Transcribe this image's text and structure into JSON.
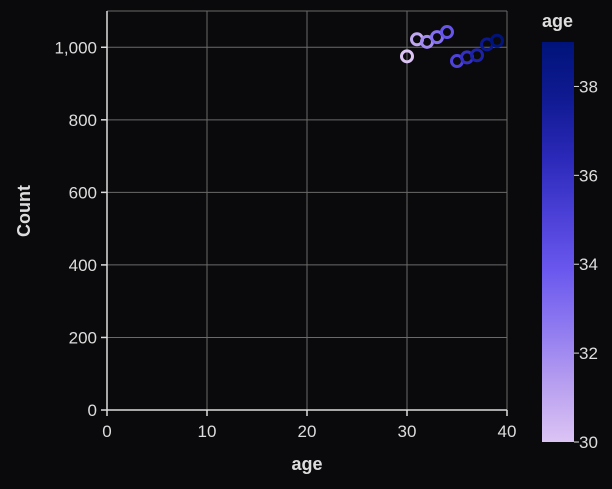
{
  "chart_data": {
    "type": "scatter",
    "mark": "ring",
    "x_label": "age",
    "y_label": "Count",
    "x_range": [
      0,
      40
    ],
    "y_range": [
      0,
      1100
    ],
    "x_ticks": [
      0,
      10,
      20,
      30,
      40
    ],
    "y_ticks": [
      0,
      200,
      400,
      600,
      800,
      1000
    ],
    "y_tick_labels": [
      "0",
      "200",
      "400",
      "600",
      "800",
      "1,000"
    ],
    "grid": true,
    "points": [
      {
        "x": 30,
        "y": 975
      },
      {
        "x": 31,
        "y": 1022
      },
      {
        "x": 32,
        "y": 1015
      },
      {
        "x": 33,
        "y": 1028
      },
      {
        "x": 34,
        "y": 1042
      },
      {
        "x": 35,
        "y": 962
      },
      {
        "x": 36,
        "y": 972
      },
      {
        "x": 37,
        "y": 978
      },
      {
        "x": 38,
        "y": 1008
      },
      {
        "x": 39,
        "y": 1018
      }
    ],
    "legend": {
      "title": "age",
      "position": "right",
      "domain": [
        30,
        39
      ],
      "ticks": [
        30,
        32,
        34,
        36,
        38
      ],
      "colors": [
        "#dcc4f4",
        "#b89ff0",
        "#8f7af0",
        "#6a58ee",
        "#4a3fd6",
        "#2a28b8",
        "#101a92",
        "#00137a"
      ]
    },
    "colors": {
      "background": "#0a0a0c",
      "grid": "#6a6a6a",
      "axis": "#dddddd",
      "text": "#dddddd"
    }
  }
}
